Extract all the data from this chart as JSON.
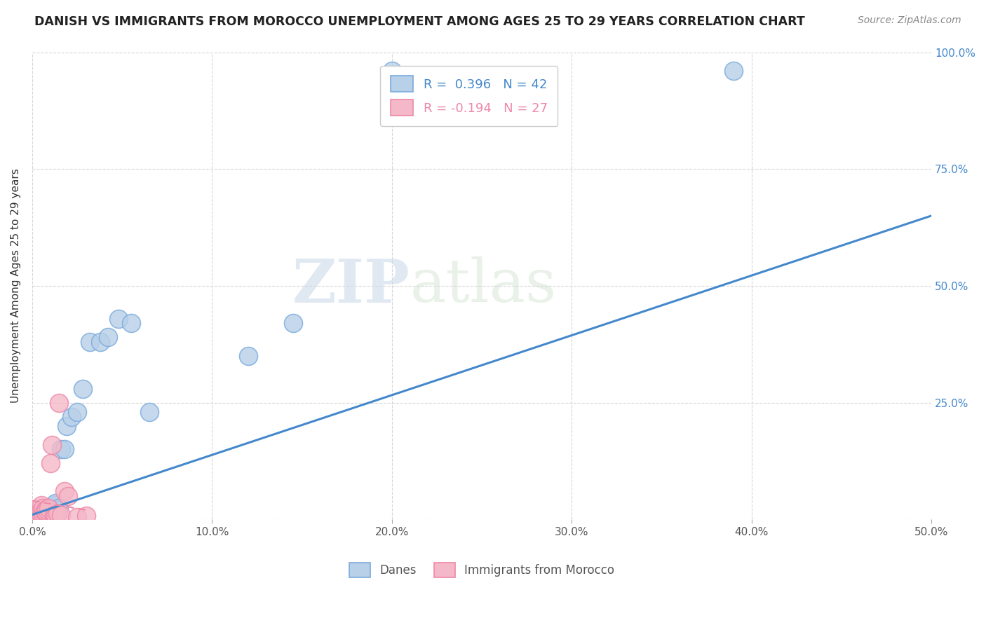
{
  "title": "DANISH VS IMMIGRANTS FROM MOROCCO UNEMPLOYMENT AMONG AGES 25 TO 29 YEARS CORRELATION CHART",
  "source": "Source: ZipAtlas.com",
  "ylabel": "Unemployment Among Ages 25 to 29 years",
  "xlim": [
    0.0,
    0.5
  ],
  "ylim": [
    0.0,
    1.0
  ],
  "xticks": [
    0.0,
    0.1,
    0.2,
    0.3,
    0.4,
    0.5
  ],
  "yticks": [
    0.0,
    0.25,
    0.5,
    0.75,
    1.0
  ],
  "xtick_labels": [
    "0.0%",
    "10.0%",
    "20.0%",
    "30.0%",
    "40.0%",
    "50.0%"
  ],
  "ytick_labels_right": [
    "",
    "25.0%",
    "50.0%",
    "75.0%",
    "100.0%"
  ],
  "danes_R": 0.396,
  "danes_N": 42,
  "morocco_R": -0.194,
  "morocco_N": 27,
  "danes_color": "#b8d0e8",
  "morocco_color": "#f5b8c8",
  "danes_edge_color": "#7aaadd",
  "morocco_edge_color": "#ee88a8",
  "danes_line_color": "#4488cc",
  "morocco_line_color": "#ee88a8",
  "legend_danes_label": "Danes",
  "legend_morocco_label": "Immigrants from Morocco",
  "watermark_zip": "ZIP",
  "watermark_atlas": "atlas",
  "background_color": "#ffffff",
  "danes_x": [
    0.001,
    0.002,
    0.002,
    0.003,
    0.003,
    0.003,
    0.004,
    0.004,
    0.005,
    0.005,
    0.005,
    0.006,
    0.006,
    0.007,
    0.007,
    0.007,
    0.008,
    0.008,
    0.009,
    0.01,
    0.01,
    0.011,
    0.012,
    0.013,
    0.014,
    0.015,
    0.016,
    0.018,
    0.019,
    0.022,
    0.025,
    0.028,
    0.032,
    0.038,
    0.042,
    0.048,
    0.055,
    0.065,
    0.12,
    0.145,
    0.2,
    0.39
  ],
  "danes_y": [
    0.005,
    0.003,
    0.006,
    0.004,
    0.008,
    0.01,
    0.005,
    0.007,
    0.006,
    0.01,
    0.015,
    0.008,
    0.012,
    0.007,
    0.01,
    0.018,
    0.012,
    0.02,
    0.025,
    0.015,
    0.022,
    0.018,
    0.03,
    0.035,
    0.02,
    0.025,
    0.15,
    0.15,
    0.2,
    0.22,
    0.23,
    0.28,
    0.38,
    0.38,
    0.39,
    0.43,
    0.42,
    0.23,
    0.35,
    0.42,
    0.96,
    0.96
  ],
  "morocco_x": [
    0.001,
    0.002,
    0.002,
    0.003,
    0.003,
    0.004,
    0.004,
    0.005,
    0.005,
    0.005,
    0.006,
    0.006,
    0.007,
    0.007,
    0.008,
    0.009,
    0.01,
    0.011,
    0.012,
    0.013,
    0.014,
    0.015,
    0.016,
    0.018,
    0.02,
    0.025,
    0.03
  ],
  "morocco_y": [
    0.003,
    0.005,
    0.008,
    0.005,
    0.012,
    0.008,
    0.015,
    0.01,
    0.02,
    0.03,
    0.012,
    0.025,
    0.015,
    0.018,
    0.022,
    0.025,
    0.12,
    0.16,
    0.01,
    0.008,
    0.012,
    0.25,
    0.01,
    0.06,
    0.05,
    0.005,
    0.008
  ],
  "danes_line_x0": 0.0,
  "danes_line_y0": 0.01,
  "danes_line_x1": 0.5,
  "danes_line_y1": 0.65,
  "morocco_line_x0": 0.0,
  "morocco_line_y0": 0.04,
  "morocco_line_x1": 0.03,
  "morocco_line_y1": 0.02
}
